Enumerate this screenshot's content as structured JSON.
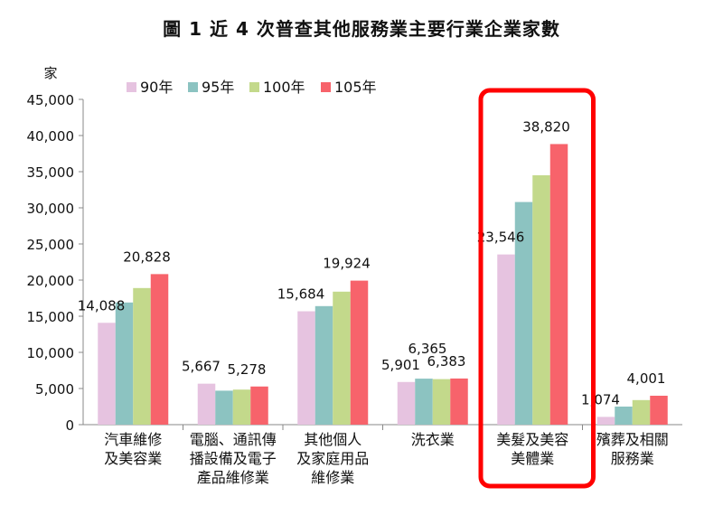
{
  "chart_data": {
    "type": "bar",
    "title": "圖 1  近 4 次普查其他服務業主要行業企業家數",
    "ylabel": "家",
    "xlabel": "",
    "ylim": [
      0,
      45000
    ],
    "yticks": [
      "0",
      "5,000",
      "10,000",
      "15,000",
      "20,000",
      "25,000",
      "30,000",
      "35,000",
      "40,000",
      "45,000"
    ],
    "grid": false,
    "legend": "top-left",
    "categories": [
      [
        "汽車維修",
        "及美容業"
      ],
      [
        "電腦、通訊傳",
        "播設備及電子",
        "產品維修業"
      ],
      [
        "其他個人",
        "及家庭用品",
        "維修業"
      ],
      [
        "洗衣業"
      ],
      [
        "美髮及美容",
        "美體業"
      ],
      [
        "殯葬及相關",
        "服務業"
      ]
    ],
    "series": [
      {
        "name": "90年",
        "color": "#e6c3e0",
        "values": [
          14088,
          5667,
          15684,
          5901,
          23546,
          1074
        ]
      },
      {
        "name": "95年",
        "color": "#8cc3c1",
        "values": [
          16900,
          4700,
          16400,
          6365,
          30800,
          2500
        ]
      },
      {
        "name": "100年",
        "color": "#c3d98b",
        "values": [
          18900,
          4850,
          18400,
          6300,
          34500,
          3400
        ]
      },
      {
        "name": "105年",
        "color": "#f7636b",
        "values": [
          20828,
          5278,
          19924,
          6383,
          38820,
          4001
        ]
      }
    ],
    "data_labels": [
      {
        "text": "14,088",
        "category": 0,
        "series": 0
      },
      {
        "text": "20,828",
        "category": 0,
        "series": 3
      },
      {
        "text": "5,667",
        "category": 1,
        "series": 0
      },
      {
        "text": "5,278",
        "category": 1,
        "series": 3
      },
      {
        "text": "15,684",
        "category": 2,
        "series": 0
      },
      {
        "text": "19,924",
        "category": 2,
        "series": 3
      },
      {
        "text": "5,901",
        "category": 3,
        "series": 0
      },
      {
        "text": "6,365",
        "category": 3,
        "series": 1
      },
      {
        "text": "6,383",
        "category": 3,
        "series": 3
      },
      {
        "text": "23,546",
        "category": 4,
        "series": 0
      },
      {
        "text": "38,820",
        "category": 4,
        "series": 3
      },
      {
        "text": "1,074",
        "category": 5,
        "series": 0
      },
      {
        "text": "4,001",
        "category": 5,
        "series": 3
      }
    ],
    "highlight": {
      "category": 4,
      "color": "#ff0000"
    }
  }
}
